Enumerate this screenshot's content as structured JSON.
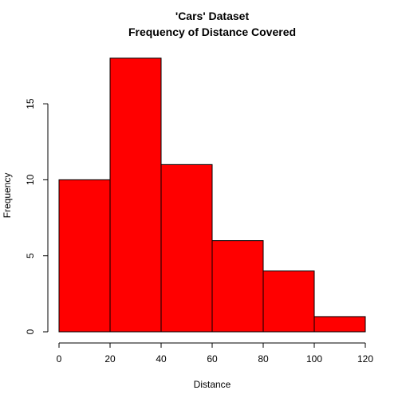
{
  "chart_data": {
    "type": "bar",
    "title": "'Cars' Dataset",
    "subtitle": "Frequency of Distance Covered",
    "xlabel": "Distance",
    "ylabel": "Frequency",
    "bins": [
      {
        "from": 0,
        "to": 20,
        "value": 10
      },
      {
        "from": 20,
        "to": 40,
        "value": 18
      },
      {
        "from": 40,
        "to": 60,
        "value": 11
      },
      {
        "from": 60,
        "to": 80,
        "value": 6
      },
      {
        "from": 80,
        "to": 100,
        "value": 4
      },
      {
        "from": 100,
        "to": 120,
        "value": 1
      }
    ],
    "xlim": [
      0,
      120
    ],
    "ylim": [
      0,
      18
    ],
    "x_ticks": [
      0,
      20,
      40,
      60,
      80,
      100,
      120
    ],
    "y_ticks": [
      0,
      5,
      10,
      15
    ],
    "bar_color": "#ff0000",
    "grid": false,
    "legend": "none"
  }
}
